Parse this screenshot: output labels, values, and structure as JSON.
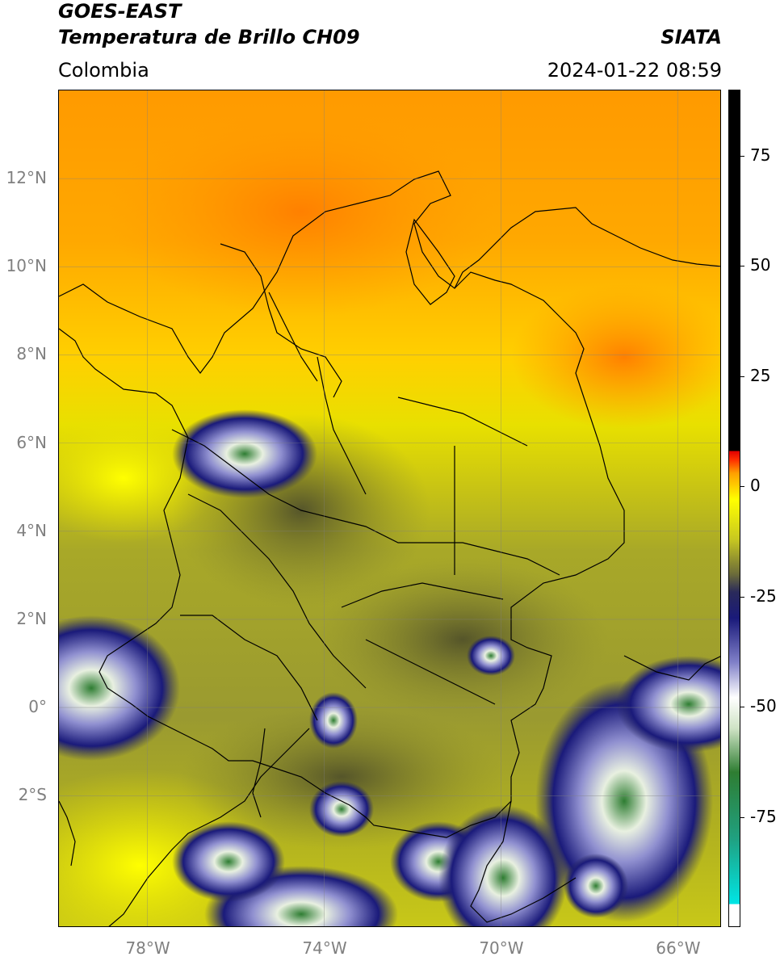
{
  "header": {
    "satellite": "GOES-EAST",
    "product": "Temperatura de Brillo CH09",
    "agency": "SIATA",
    "region": "Colombia",
    "datetime": "2024-01-22 08:59"
  },
  "map": {
    "lon_range": [
      -80,
      -65
    ],
    "lat_range": [
      -5,
      14
    ],
    "lon_ticks": [
      {
        "value": -78,
        "label": "78°W"
      },
      {
        "value": -74,
        "label": "74°W"
      },
      {
        "value": -70,
        "label": "70°W"
      },
      {
        "value": -66,
        "label": "66°W"
      }
    ],
    "lat_ticks": [
      {
        "value": 12,
        "label": "12°N"
      },
      {
        "value": 10,
        "label": "10°N"
      },
      {
        "value": 8,
        "label": "8°N"
      },
      {
        "value": 6,
        "label": "6°N"
      },
      {
        "value": 4,
        "label": "4°N"
      },
      {
        "value": 2,
        "label": "2°N"
      },
      {
        "value": 0,
        "label": "0°"
      },
      {
        "value": -2,
        "label": "2°S"
      }
    ],
    "grid": true
  },
  "colorbar": {
    "range": [
      -100,
      90
    ],
    "ticks": [
      {
        "value": 75,
        "label": "75"
      },
      {
        "value": 50,
        "label": "50"
      },
      {
        "value": 25,
        "label": "25"
      },
      {
        "value": 0,
        "label": "0"
      },
      {
        "value": -25,
        "label": "-25"
      },
      {
        "value": -50,
        "label": "-50"
      },
      {
        "value": -75,
        "label": "-75"
      }
    ],
    "stops": [
      {
        "value": -100,
        "color": "#ffffff"
      },
      {
        "value": -95,
        "color": "#ffffff"
      },
      {
        "value": -94.9,
        "color": "#00e5e5"
      },
      {
        "value": -80,
        "color": "#20a080"
      },
      {
        "value": -65,
        "color": "#2e7d32"
      },
      {
        "value": -55,
        "color": "#cfe3c5"
      },
      {
        "value": -48,
        "color": "#ffffff"
      },
      {
        "value": -40,
        "color": "#8080c8"
      },
      {
        "value": -30,
        "color": "#1a1a7a"
      },
      {
        "value": -24,
        "color": "#2a2a5a"
      },
      {
        "value": -20,
        "color": "#6b6b3a"
      },
      {
        "value": -12,
        "color": "#c8c820"
      },
      {
        "value": -3,
        "color": "#ffff00"
      },
      {
        "value": 3,
        "color": "#ffa000"
      },
      {
        "value": 6,
        "color": "#ff3000"
      },
      {
        "value": 8,
        "color": "#e00000"
      },
      {
        "value": 8.1,
        "color": "#000000"
      },
      {
        "value": 90,
        "color": "#000000"
      }
    ]
  }
}
